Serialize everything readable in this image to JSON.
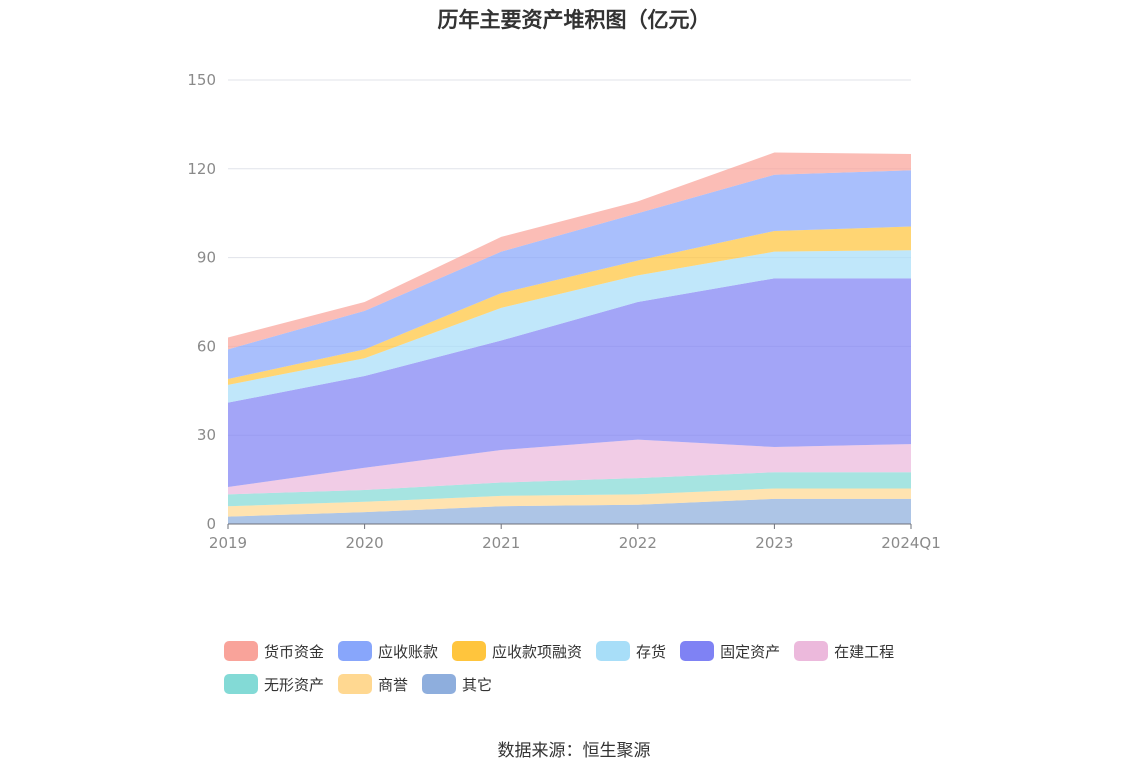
{
  "chart_data": {
    "type": "area",
    "stacked": true,
    "title": "历年主要资产堆积图（亿元）",
    "categories": [
      "2019",
      "2020",
      "2021",
      "2022",
      "2023",
      "2024Q1"
    ],
    "ylim": [
      0,
      150
    ],
    "yticks": [
      0,
      30,
      60,
      90,
      120,
      150
    ],
    "grid": true,
    "legend_position": "bottom",
    "series": [
      {
        "name": "其它",
        "color": "#8eaedd",
        "values": [
          2.5,
          4,
          6,
          6.5,
          8.5,
          8.5
        ]
      },
      {
        "name": "商誉",
        "color": "#ffd891",
        "values": [
          3.5,
          3.5,
          3.5,
          3.5,
          3.5,
          3.5
        ]
      },
      {
        "name": "无形资产",
        "color": "#83dad6",
        "values": [
          4,
          4,
          4.5,
          5.5,
          5.5,
          5.5
        ]
      },
      {
        "name": "在建工程",
        "color": "#ecb9dc",
        "values": [
          2.5,
          7.5,
          11,
          13,
          8.5,
          9.5
        ]
      },
      {
        "name": "固定资产",
        "color": "#7f82f4",
        "values": [
          28.5,
          31,
          37,
          46.5,
          57,
          56
        ]
      },
      {
        "name": "存货",
        "color": "#a8def8",
        "values": [
          6,
          6,
          11,
          9,
          9,
          9.5
        ]
      },
      {
        "name": "应收款项融资",
        "color": "#ffc53d",
        "values": [
          2,
          3,
          5,
          5,
          7,
          8
        ]
      },
      {
        "name": "应收账款",
        "color": "#88a6fb",
        "values": [
          10,
          13,
          14,
          16,
          19,
          19
        ]
      },
      {
        "name": "货币资金",
        "color": "#f9a39a",
        "values": [
          4,
          3,
          5,
          4,
          7.5,
          5.5
        ]
      }
    ],
    "legend_order": [
      "货币资金",
      "应收账款",
      "应收款项融资",
      "存货",
      "固定资产",
      "在建工程",
      "无形资产",
      "商誉",
      "其它"
    ]
  },
  "source_text": "数据来源：恒生聚源"
}
